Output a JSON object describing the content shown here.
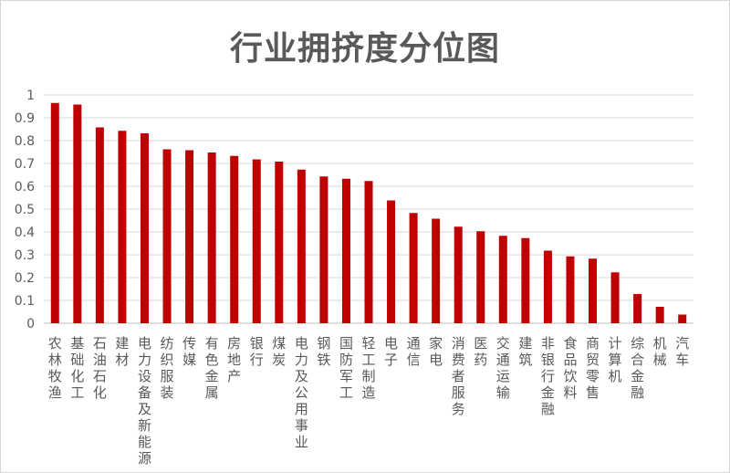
{
  "chart_data": {
    "type": "bar",
    "title": "行业拥挤度分位图",
    "xlabel": "",
    "ylabel": "",
    "ylim": [
      0,
      1
    ],
    "yticks": [
      "0",
      "0.1",
      "0.2",
      "0.3",
      "0.4",
      "0.5",
      "0.6",
      "0.7",
      "0.8",
      "0.9",
      "1"
    ],
    "grid": true,
    "legend": "none",
    "bar_color": "#c00000",
    "categories": [
      "农林牧渔",
      "基础化工",
      "石油石化",
      "建材",
      "电力设备及新能源",
      "纺织服装",
      "传媒",
      "有色金属",
      "房地产",
      "银行",
      "煤炭",
      "电力及公用事业",
      "钢铁",
      "国防军工",
      "轻工制造",
      "电子",
      "通信",
      "家电",
      "消费者服务",
      "医药",
      "交通运输",
      "建筑",
      "非银行金融",
      "食品饮料",
      "商贸零售",
      "计算机",
      "综合金融",
      "机械",
      "汽车"
    ],
    "values": [
      0.965,
      0.958,
      0.858,
      0.843,
      0.832,
      0.762,
      0.758,
      0.748,
      0.733,
      0.718,
      0.708,
      0.673,
      0.643,
      0.633,
      0.623,
      0.538,
      0.483,
      0.458,
      0.423,
      0.403,
      0.383,
      0.373,
      0.318,
      0.293,
      0.283,
      0.223,
      0.128,
      0.072,
      0.038
    ]
  }
}
